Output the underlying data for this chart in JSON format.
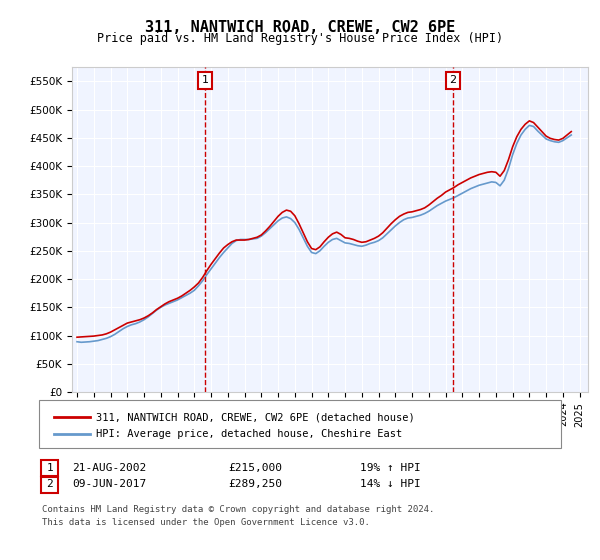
{
  "title": "311, NANTWICH ROAD, CREWE, CW2 6PE",
  "subtitle": "Price paid vs. HM Land Registry's House Price Index (HPI)",
  "ylabel_ticks": [
    "£0",
    "£50K",
    "£100K",
    "£150K",
    "£200K",
    "£250K",
    "£300K",
    "£350K",
    "£400K",
    "£450K",
    "£500K",
    "£550K"
  ],
  "ytick_values": [
    0,
    50000,
    100000,
    150000,
    200000,
    250000,
    300000,
    350000,
    400000,
    450000,
    500000,
    550000
  ],
  "ylim": [
    0,
    575000
  ],
  "xlim_start": 1995.0,
  "xlim_end": 2025.5,
  "marker1_x": 2002.64,
  "marker1_y": 215000,
  "marker2_x": 2017.44,
  "marker2_y": 289250,
  "legend_line1": "311, NANTWICH ROAD, CREWE, CW2 6PE (detached house)",
  "legend_line2": "HPI: Average price, detached house, Cheshire East",
  "table_row1": [
    "1",
    "21-AUG-2002",
    "£215,000",
    "19% ↑ HPI"
  ],
  "table_row2": [
    "2",
    "09-JUN-2017",
    "£289,250",
    "14% ↓ HPI"
  ],
  "footer1": "Contains HM Land Registry data © Crown copyright and database right 2024.",
  "footer2": "This data is licensed under the Open Government Licence v3.0.",
  "red_color": "#cc0000",
  "blue_color": "#6699cc",
  "background_color": "#f0f4ff",
  "hpi_data_x": [
    1995.0,
    1995.25,
    1995.5,
    1995.75,
    1996.0,
    1996.25,
    1996.5,
    1996.75,
    1997.0,
    1997.25,
    1997.5,
    1997.75,
    1998.0,
    1998.25,
    1998.5,
    1998.75,
    1999.0,
    1999.25,
    1999.5,
    1999.75,
    2000.0,
    2000.25,
    2000.5,
    2000.75,
    2001.0,
    2001.25,
    2001.5,
    2001.75,
    2002.0,
    2002.25,
    2002.5,
    2002.75,
    2003.0,
    2003.25,
    2003.5,
    2003.75,
    2004.0,
    2004.25,
    2004.5,
    2004.75,
    2005.0,
    2005.25,
    2005.5,
    2005.75,
    2006.0,
    2006.25,
    2006.5,
    2006.75,
    2007.0,
    2007.25,
    2007.5,
    2007.75,
    2008.0,
    2008.25,
    2008.5,
    2008.75,
    2009.0,
    2009.25,
    2009.5,
    2009.75,
    2010.0,
    2010.25,
    2010.5,
    2010.75,
    2011.0,
    2011.25,
    2011.5,
    2011.75,
    2012.0,
    2012.25,
    2012.5,
    2012.75,
    2013.0,
    2013.25,
    2013.5,
    2013.75,
    2014.0,
    2014.25,
    2014.5,
    2014.75,
    2015.0,
    2015.25,
    2015.5,
    2015.75,
    2016.0,
    2016.25,
    2016.5,
    2016.75,
    2017.0,
    2017.25,
    2017.5,
    2017.75,
    2018.0,
    2018.25,
    2018.5,
    2018.75,
    2019.0,
    2019.25,
    2019.5,
    2019.75,
    2020.0,
    2020.25,
    2020.5,
    2020.75,
    2021.0,
    2021.25,
    2021.5,
    2021.75,
    2022.0,
    2022.25,
    2022.5,
    2022.75,
    2023.0,
    2023.25,
    2023.5,
    2023.75,
    2024.0,
    2024.25,
    2024.5
  ],
  "hpi_data_y": [
    89000,
    88000,
    88500,
    89000,
    90000,
    91000,
    93000,
    95000,
    98000,
    102000,
    107000,
    112000,
    116000,
    119000,
    121000,
    124000,
    128000,
    133000,
    139000,
    145000,
    150000,
    154000,
    157000,
    160000,
    163000,
    167000,
    171000,
    175000,
    180000,
    188000,
    197000,
    208000,
    218000,
    228000,
    238000,
    247000,
    255000,
    263000,
    268000,
    270000,
    270000,
    270000,
    271000,
    272000,
    276000,
    282000,
    289000,
    296000,
    303000,
    308000,
    310000,
    307000,
    300000,
    288000,
    273000,
    258000,
    247000,
    245000,
    250000,
    258000,
    265000,
    270000,
    272000,
    268000,
    264000,
    263000,
    261000,
    259000,
    258000,
    260000,
    263000,
    265000,
    268000,
    273000,
    280000,
    287000,
    294000,
    300000,
    305000,
    308000,
    309000,
    311000,
    313000,
    316000,
    320000,
    325000,
    330000,
    334000,
    338000,
    341000,
    344000,
    348000,
    352000,
    356000,
    360000,
    363000,
    366000,
    368000,
    370000,
    372000,
    371000,
    365000,
    375000,
    395000,
    420000,
    440000,
    455000,
    465000,
    472000,
    470000,
    462000,
    455000,
    448000,
    445000,
    443000,
    442000,
    445000,
    450000,
    455000
  ],
  "price_data_x": [
    1995.0,
    1995.25,
    1995.5,
    1995.75,
    1996.0,
    1996.25,
    1996.5,
    1996.75,
    1997.0,
    1997.25,
    1997.5,
    1997.75,
    1998.0,
    1998.25,
    1998.5,
    1998.75,
    1999.0,
    1999.25,
    1999.5,
    1999.75,
    2000.0,
    2000.25,
    2000.5,
    2000.75,
    2001.0,
    2001.25,
    2001.5,
    2001.75,
    2002.0,
    2002.25,
    2002.5,
    2002.75,
    2003.0,
    2003.25,
    2003.5,
    2003.75,
    2004.0,
    2004.25,
    2004.5,
    2004.75,
    2005.0,
    2005.25,
    2005.5,
    2005.75,
    2006.0,
    2006.25,
    2006.5,
    2006.75,
    2007.0,
    2007.25,
    2007.5,
    2007.75,
    2008.0,
    2008.25,
    2008.5,
    2008.75,
    2009.0,
    2009.25,
    2009.5,
    2009.75,
    2010.0,
    2010.25,
    2010.5,
    2010.75,
    2011.0,
    2011.25,
    2011.5,
    2011.75,
    2012.0,
    2012.25,
    2012.5,
    2012.75,
    2013.0,
    2013.25,
    2013.5,
    2013.75,
    2014.0,
    2014.25,
    2014.5,
    2014.75,
    2015.0,
    2015.25,
    2015.5,
    2015.75,
    2016.0,
    2016.25,
    2016.5,
    2016.75,
    2017.0,
    2017.25,
    2017.5,
    2017.75,
    2018.0,
    2018.25,
    2018.5,
    2018.75,
    2019.0,
    2019.25,
    2019.5,
    2019.75,
    2020.0,
    2020.25,
    2020.5,
    2020.75,
    2021.0,
    2021.25,
    2021.5,
    2021.75,
    2022.0,
    2022.25,
    2022.5,
    2022.75,
    2023.0,
    2023.25,
    2023.5,
    2023.75,
    2024.0,
    2024.25,
    2024.5
  ],
  "price_data_y": [
    97000,
    97500,
    98000,
    98500,
    99000,
    100000,
    101000,
    103000,
    106000,
    110000,
    114000,
    118000,
    122000,
    124000,
    126000,
    128000,
    131000,
    135000,
    140000,
    146000,
    151000,
    156000,
    160000,
    163000,
    166000,
    170000,
    175000,
    180000,
    186000,
    193000,
    203000,
    215000,
    226000,
    236000,
    246000,
    255000,
    261000,
    266000,
    269000,
    269000,
    269000,
    270000,
    272000,
    274000,
    278000,
    285000,
    293000,
    302000,
    311000,
    318000,
    322000,
    320000,
    312000,
    298000,
    282000,
    266000,
    254000,
    252000,
    257000,
    266000,
    274000,
    280000,
    283000,
    279000,
    273000,
    272000,
    270000,
    267000,
    265000,
    266000,
    269000,
    272000,
    276000,
    282000,
    290000,
    298000,
    305000,
    311000,
    315000,
    318000,
    319000,
    321000,
    323000,
    326000,
    331000,
    337000,
    343000,
    348000,
    354000,
    358000,
    362000,
    367000,
    371000,
    375000,
    379000,
    382000,
    385000,
    387000,
    389000,
    390000,
    389000,
    382000,
    392000,
    411000,
    434000,
    452000,
    465000,
    474000,
    480000,
    477000,
    469000,
    461000,
    453000,
    449000,
    447000,
    446000,
    449000,
    455000,
    461000
  ]
}
